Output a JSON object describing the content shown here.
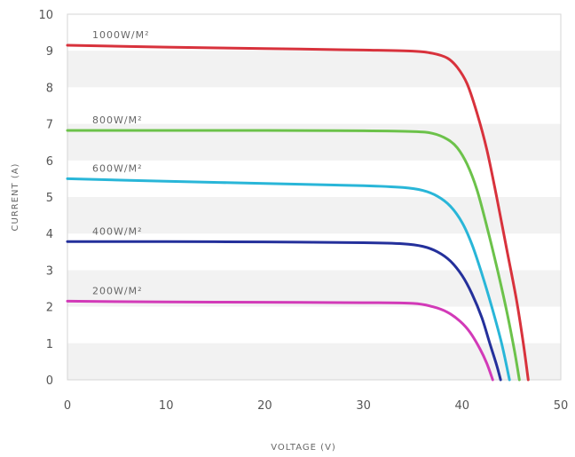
{
  "chart_data": {
    "type": "line",
    "xlabel": "VOLTAGE (V)",
    "ylabel": "CURRENT (A)",
    "xlim": [
      0,
      50
    ],
    "ylim": [
      0,
      10
    ],
    "x_ticks": [
      "0",
      "10",
      "20",
      "30",
      "40",
      "50"
    ],
    "y_ticks": [
      "0",
      "1",
      "2",
      "3",
      "4",
      "5",
      "6",
      "7",
      "8",
      "9",
      "10"
    ],
    "grid": "alternating horizontal bands",
    "series": [
      {
        "name": "1000W/M²",
        "color": "#d8323c",
        "points": [
          [
            0,
            9.15
          ],
          [
            10,
            9.1
          ],
          [
            20,
            9.06
          ],
          [
            30,
            9.02
          ],
          [
            35,
            8.99
          ],
          [
            37,
            8.93
          ],
          [
            38.5,
            8.8
          ],
          [
            39.5,
            8.55
          ],
          [
            40.5,
            8.1
          ],
          [
            41.5,
            7.3
          ],
          [
            42.5,
            6.3
          ],
          [
            43.5,
            5.0
          ],
          [
            44.5,
            3.6
          ],
          [
            45.5,
            2.2
          ],
          [
            46.2,
            1.0
          ],
          [
            46.7,
            0
          ]
        ]
      },
      {
        "name": "800W/M²",
        "color": "#6cc24a",
        "points": [
          [
            0,
            6.82
          ],
          [
            10,
            6.82
          ],
          [
            20,
            6.82
          ],
          [
            30,
            6.81
          ],
          [
            35,
            6.79
          ],
          [
            37,
            6.74
          ],
          [
            38.5,
            6.58
          ],
          [
            39.5,
            6.35
          ],
          [
            40.5,
            5.9
          ],
          [
            41.5,
            5.2
          ],
          [
            42.5,
            4.2
          ],
          [
            43.5,
            3.1
          ],
          [
            44.5,
            1.9
          ],
          [
            45.3,
            0.8
          ],
          [
            45.8,
            0
          ]
        ]
      },
      {
        "name": "600W/M²",
        "color": "#29b6d8",
        "points": [
          [
            0,
            5.5
          ],
          [
            10,
            5.43
          ],
          [
            20,
            5.37
          ],
          [
            30,
            5.31
          ],
          [
            34,
            5.26
          ],
          [
            36,
            5.18
          ],
          [
            37.5,
            5.02
          ],
          [
            38.8,
            4.75
          ],
          [
            40,
            4.3
          ],
          [
            41,
            3.7
          ],
          [
            42,
            2.9
          ],
          [
            43,
            2.0
          ],
          [
            44,
            1.0
          ],
          [
            44.8,
            0
          ]
        ]
      },
      {
        "name": "400W/M²",
        "color": "#24309b",
        "points": [
          [
            0,
            3.78
          ],
          [
            10,
            3.78
          ],
          [
            20,
            3.77
          ],
          [
            30,
            3.75
          ],
          [
            34,
            3.72
          ],
          [
            36,
            3.65
          ],
          [
            37.5,
            3.5
          ],
          [
            38.8,
            3.25
          ],
          [
            40,
            2.85
          ],
          [
            41,
            2.35
          ],
          [
            42,
            1.7
          ],
          [
            42.8,
            1.0
          ],
          [
            43.5,
            0.4
          ],
          [
            43.9,
            0
          ]
        ]
      },
      {
        "name": "200W/M²",
        "color": "#d23ab8",
        "points": [
          [
            0,
            2.15
          ],
          [
            10,
            2.13
          ],
          [
            20,
            2.12
          ],
          [
            30,
            2.11
          ],
          [
            35,
            2.09
          ],
          [
            37,
            2.0
          ],
          [
            38.5,
            1.85
          ],
          [
            39.8,
            1.6
          ],
          [
            40.8,
            1.3
          ],
          [
            41.8,
            0.85
          ],
          [
            42.5,
            0.45
          ],
          [
            43.1,
            0
          ]
        ]
      }
    ]
  }
}
